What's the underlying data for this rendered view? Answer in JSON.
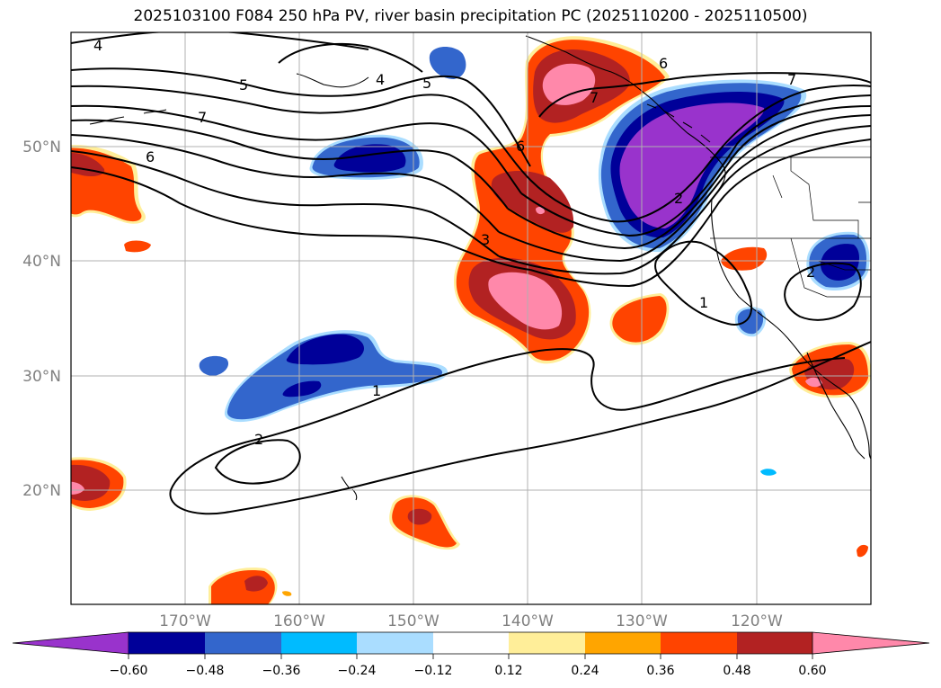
{
  "title": "2025103100 F084 250 hPa PV, river basin precipitation PC (2025110200 - 2025110500)",
  "map": {
    "lat_labels": [
      "50°N",
      "40°N",
      "30°N",
      "20°N"
    ],
    "lon_labels": [
      "170°W",
      "160°W",
      "150°W",
      "140°W",
      "130°W",
      "120°W"
    ],
    "extent": {
      "lon": [
        -180,
        -110
      ],
      "lat": [
        10,
        60
      ]
    }
  },
  "contours": {
    "labels": [
      "4",
      "5",
      "4",
      "5",
      "7",
      "6",
      "6",
      "7",
      "7",
      "6",
      "2",
      "3",
      "1",
      "1",
      "2",
      "2"
    ]
  },
  "colorbar": {
    "colors": [
      "#9933cc",
      "#000099",
      "#3366cc",
      "#00bbff",
      "#aaddff",
      "#ffffff",
      "#ffee99",
      "#ffa500",
      "#ff4400",
      "#b22222",
      "#ff88aa"
    ],
    "tick_labels": [
      "−0.60",
      "−0.48",
      "−0.36",
      "−0.24",
      "−0.12",
      "0.12",
      "0.24",
      "0.36",
      "0.48",
      "0.60"
    ]
  }
}
